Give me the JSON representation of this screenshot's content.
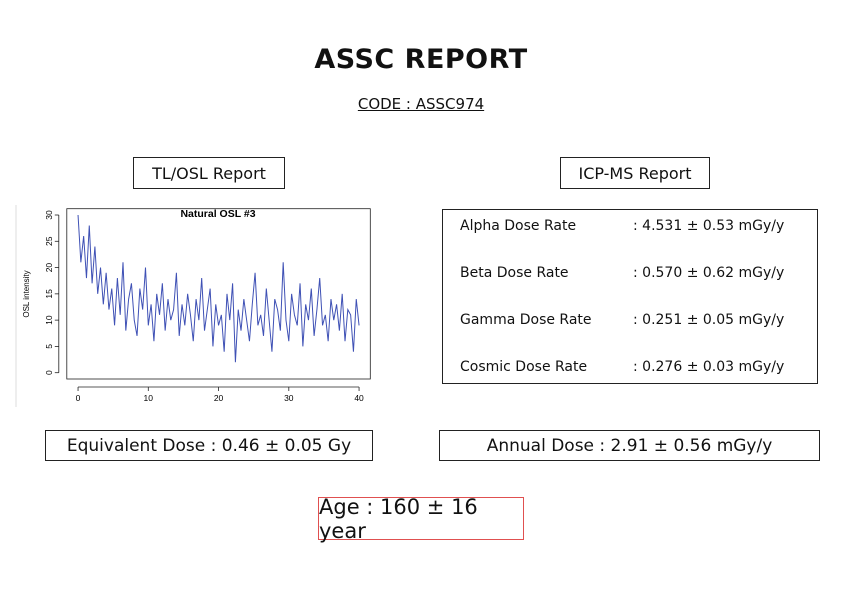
{
  "header": {
    "title": "ASSC REPORT",
    "code": "CODE : ASSC974"
  },
  "tl_osl": {
    "heading": "TL/OSL Report",
    "chart": {
      "type": "line",
      "title": "Natural OSL #3",
      "ylabel": "OSL intensity",
      "color": "#3f51b5",
      "xlim": [
        -1.6,
        41.6
      ],
      "ylim": [
        -1.2,
        31.2
      ],
      "xticks": [
        0,
        10,
        20,
        30,
        40
      ],
      "yticks": [
        0,
        5,
        10,
        15,
        20,
        25,
        30
      ],
      "x": [
        0,
        0.4,
        0.8,
        1.2,
        1.6,
        2,
        2.4,
        2.8,
        3.2,
        3.6,
        4,
        4.4,
        4.8,
        5.2,
        5.6,
        6,
        6.4,
        6.8,
        7.2,
        7.6,
        8,
        8.4,
        8.8,
        9.2,
        9.6,
        10,
        10.4,
        10.8,
        11.2,
        11.6,
        12,
        12.4,
        12.8,
        13.2,
        13.6,
        14,
        14.4,
        14.8,
        15.2,
        15.6,
        16,
        16.4,
        16.8,
        17.2,
        17.6,
        18,
        18.4,
        18.8,
        19.2,
        19.6,
        20,
        20.4,
        20.8,
        21.2,
        21.6,
        22,
        22.4,
        22.8,
        23.2,
        23.6,
        24,
        24.4,
        24.8,
        25.2,
        25.6,
        26,
        26.4,
        26.8,
        27.2,
        27.6,
        28,
        28.4,
        28.8,
        29.2,
        29.6,
        30,
        30.4,
        30.8,
        31.2,
        31.6,
        32,
        32.4,
        32.8,
        33.2,
        33.6,
        34,
        34.4,
        34.8,
        35.2,
        35.6,
        36,
        36.4,
        36.8,
        37.2,
        37.6,
        38,
        38.4,
        38.8,
        39.2,
        39.6,
        40
      ],
      "values": [
        30,
        21,
        26,
        18,
        28,
        17,
        24,
        15,
        20,
        13,
        19,
        12,
        16,
        9,
        18,
        11,
        21,
        8,
        14,
        17,
        10,
        7,
        16,
        12,
        20,
        9,
        13,
        6,
        15,
        11,
        17,
        8,
        14,
        10,
        12,
        19,
        7,
        13,
        9,
        15,
        11,
        6,
        14,
        10,
        18,
        8,
        12,
        16,
        5,
        13,
        9,
        11,
        4,
        15,
        10,
        17,
        2,
        12,
        8,
        14,
        10,
        6,
        13,
        19,
        9,
        11,
        7,
        16,
        10,
        4,
        14,
        12,
        8,
        21,
        10,
        6,
        15,
        11,
        9,
        17,
        5,
        13,
        10,
        16,
        7,
        12,
        18,
        9,
        11,
        6,
        14,
        10,
        13,
        8,
        15,
        6,
        12,
        11,
        4,
        14,
        9
      ]
    },
    "result": "Equivalent Dose : 0.46 ± 0.05 Gy"
  },
  "icp_ms": {
    "heading": "ICP-MS Report",
    "rows": [
      [
        "Alpha Dose Rate",
        ": 4.531 ± 0.53 mGy/y"
      ],
      [
        "Beta Dose Rate",
        ": 0.570 ± 0.62 mGy/y"
      ],
      [
        "Gamma Dose Rate",
        ": 0.251 ± 0.05 mGy/y"
      ],
      [
        "Cosmic Dose Rate",
        ": 0.276 ± 0.03 mGy/y"
      ]
    ],
    "result": "Annual Dose : 2.91 ± 0.56 mGy/y"
  },
  "age": "Age : 160 ± 16 year"
}
